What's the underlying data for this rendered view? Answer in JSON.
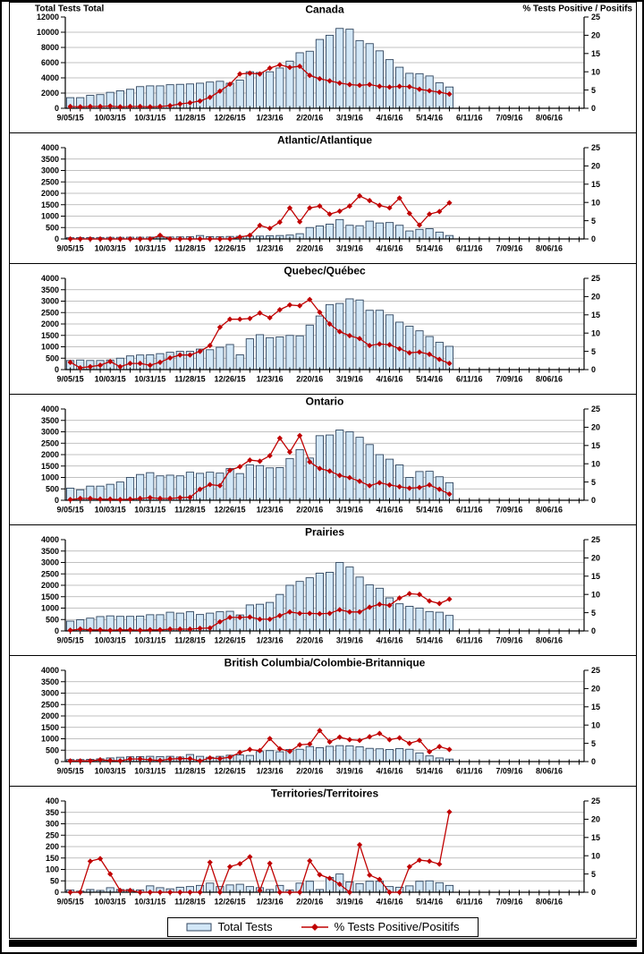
{
  "axis_titles": {
    "left": "Total Tests Total",
    "right": "% Tests Positive / Positifs"
  },
  "legend": {
    "bar_label": "Total Tests",
    "line_label": "% Tests Positive/Positifs"
  },
  "colors": {
    "bar_fill": "#D2E7F7",
    "bar_stroke": "#31465F",
    "line": "#C00000",
    "grid": "#ACACAC",
    "axis": "#000000",
    "text": "#000000"
  },
  "x_axis": {
    "tick_labels": [
      "9/05/15",
      "10/03/15",
      "10/31/15",
      "11/28/15",
      "12/26/15",
      "1/23/16",
      "2/20/16",
      "3/19/16",
      "4/16/16",
      "5/14/16",
      "6/11/16",
      "7/09/16",
      "8/06/16"
    ],
    "weeks_total": 52,
    "label_interval": 4,
    "data_weeks": 39
  },
  "right_axis": {
    "ylim": [
      0,
      25
    ],
    "ticks": [
      0,
      5,
      10,
      15,
      20,
      25
    ]
  },
  "chart_data": [
    {
      "type": "bar+line",
      "title": "Canada",
      "slug": "canada",
      "ylim": [
        0,
        12000
      ],
      "yticks": [
        0,
        2000,
        4000,
        6000,
        8000,
        10000,
        12000
      ],
      "bars": [
        1400,
        1400,
        1700,
        1800,
        2100,
        2300,
        2500,
        2850,
        2950,
        2950,
        3100,
        3150,
        3200,
        3300,
        3450,
        3550,
        3300,
        3700,
        4800,
        4700,
        4800,
        5300,
        6200,
        7300,
        7500,
        9050,
        9600,
        10500,
        10400,
        8900,
        8500,
        7550,
        6400,
        5400,
        4600,
        4550,
        4250,
        3350,
        2800
      ],
      "pct_positive": [
        0.5,
        0.4,
        0.5,
        0.5,
        0.6,
        0.4,
        0.5,
        0.5,
        0.4,
        0.5,
        0.7,
        1.2,
        1.5,
        2.0,
        3.0,
        4.7,
        6.6,
        9.4,
        9.6,
        9.4,
        11.0,
        11.9,
        11.2,
        11.5,
        9.0,
        8.1,
        7.5,
        6.9,
        6.5,
        6.3,
        6.5,
        6.0,
        5.8,
        6.0,
        5.9,
        5.2,
        4.8,
        4.4,
        3.9
      ]
    },
    {
      "type": "bar+line",
      "title": "Atlantic/Atlantique",
      "slug": "atlantic",
      "ylim": [
        0,
        4000
      ],
      "yticks": [
        0,
        500,
        1000,
        1500,
        2000,
        2500,
        3000,
        3500,
        4000
      ],
      "bars": [
        55,
        60,
        60,
        65,
        70,
        70,
        75,
        75,
        80,
        80,
        85,
        90,
        95,
        150,
        100,
        95,
        110,
        115,
        120,
        125,
        135,
        150,
        170,
        230,
        500,
        570,
        650,
        850,
        600,
        580,
        780,
        700,
        720,
        600,
        350,
        420,
        450,
        300,
        150
      ],
      "pct_positive": [
        0,
        0,
        0,
        0,
        0,
        0,
        0,
        0,
        0,
        1.0,
        0,
        0,
        0,
        0,
        0,
        0,
        0,
        0.5,
        1.0,
        3.7,
        2.9,
        4.6,
        8.5,
        4.7,
        8.5,
        9.0,
        6.8,
        7.6,
        9.0,
        11.8,
        10.5,
        9.2,
        8.5,
        11.2,
        7.0,
        3.8,
        6.8,
        7.5,
        9.9
      ]
    },
    {
      "type": "bar+line",
      "title": "Quebec/Québec",
      "slug": "quebec",
      "ylim": [
        0,
        4000
      ],
      "yticks": [
        0,
        500,
        1000,
        1500,
        2000,
        2500,
        3000,
        3500,
        4000
      ],
      "bars": [
        400,
        420,
        400,
        400,
        420,
        500,
        600,
        640,
        650,
        700,
        760,
        800,
        800,
        900,
        870,
        980,
        1100,
        650,
        1350,
        1530,
        1400,
        1430,
        1500,
        1480,
        1950,
        2350,
        2850,
        2900,
        3100,
        3050,
        2600,
        2600,
        2400,
        2080,
        1900,
        1700,
        1450,
        1200,
        1020
      ],
      "pct_positive": [
        2.0,
        0.5,
        0.8,
        1.2,
        2.2,
        0.8,
        1.7,
        1.7,
        1.2,
        2.0,
        3.2,
        4.0,
        4.0,
        5.0,
        6.6,
        11.6,
        13.8,
        13.8,
        14.0,
        15.5,
        14.2,
        16.4,
        17.7,
        17.5,
        19.2,
        15.7,
        12.5,
        10.4,
        9.3,
        8.5,
        6.6,
        7.0,
        6.8,
        5.7,
        4.6,
        4.8,
        4.2,
        2.8,
        1.7
      ]
    },
    {
      "type": "bar+line",
      "title": "Ontario",
      "slug": "ontario",
      "ylim": [
        0,
        4000
      ],
      "yticks": [
        0,
        500,
        1000,
        1500,
        2000,
        2500,
        3000,
        3500,
        4000
      ],
      "bars": [
        530,
        460,
        620,
        620,
        700,
        800,
        1000,
        1130,
        1210,
        1070,
        1100,
        1070,
        1230,
        1180,
        1230,
        1190,
        1390,
        1170,
        1550,
        1520,
        1420,
        1430,
        1830,
        2220,
        1850,
        2830,
        2860,
        3080,
        3000,
        2760,
        2440,
        2000,
        1800,
        1550,
        1000,
        1260,
        1270,
        1030,
        770
      ],
      "pct_positive": [
        0.2,
        0.5,
        0.5,
        0.3,
        0.3,
        0.2,
        0.3,
        0.5,
        0.7,
        0.5,
        0.5,
        0.7,
        0.8,
        3.0,
        4.3,
        4.0,
        8.2,
        9.2,
        11.0,
        10.7,
        12.2,
        17.0,
        13.2,
        17.7,
        10.5,
        8.7,
        8.0,
        6.8,
        6.2,
        5.2,
        4.0,
        4.8,
        4.2,
        3.7,
        3.3,
        3.5,
        4.2,
        3.0,
        1.7
      ]
    },
    {
      "type": "bar+line",
      "title": "Prairies",
      "slug": "prairies",
      "ylim": [
        0,
        4000
      ],
      "yticks": [
        0,
        500,
        1000,
        1500,
        2000,
        2500,
        3000,
        3500,
        4000
      ],
      "bars": [
        430,
        490,
        560,
        630,
        660,
        640,
        640,
        650,
        710,
        710,
        820,
        780,
        840,
        720,
        780,
        840,
        860,
        700,
        1140,
        1170,
        1250,
        1600,
        2000,
        2170,
        2330,
        2530,
        2570,
        3000,
        2800,
        2360,
        2020,
        1870,
        1450,
        1190,
        1080,
        1000,
        850,
        820,
        680
      ],
      "pct_positive": [
        0.2,
        0.5,
        0.3,
        0.3,
        0.2,
        0.3,
        0.3,
        0.2,
        0.3,
        0.3,
        0.5,
        0.5,
        0.5,
        0.7,
        0.8,
        2.5,
        3.7,
        3.7,
        3.8,
        3.2,
        3.2,
        4.2,
        5.2,
        4.8,
        4.8,
        4.7,
        4.8,
        5.8,
        5.2,
        5.2,
        6.5,
        7.3,
        7.0,
        9.0,
        10.2,
        10.0,
        8.2,
        7.5,
        8.7
      ]
    },
    {
      "type": "bar+line",
      "title": "British Columbia/Colombie-Britannique",
      "slug": "british-columbia",
      "ylim": [
        0,
        4000
      ],
      "yticks": [
        0,
        500,
        1000,
        1500,
        2000,
        2500,
        3000,
        3500,
        4000
      ],
      "bars": [
        90,
        90,
        100,
        120,
        160,
        190,
        210,
        220,
        230,
        220,
        230,
        200,
        310,
        230,
        190,
        230,
        280,
        290,
        270,
        440,
        480,
        430,
        530,
        540,
        660,
        610,
        670,
        700,
        690,
        650,
        580,
        560,
        530,
        570,
        540,
        380,
        250,
        160,
        110
      ],
      "pct_positive": [
        0.2,
        0.2,
        0.2,
        0.5,
        0.3,
        0.2,
        0.7,
        0.7,
        0.5,
        0.3,
        0.7,
        0.8,
        0.8,
        0.2,
        1.0,
        0.8,
        1.2,
        2.5,
        3.3,
        3.0,
        6.3,
        3.5,
        2.8,
        4.6,
        4.8,
        8.5,
        5.4,
        6.7,
        6.0,
        5.8,
        6.8,
        7.7,
        6.0,
        6.5,
        5.0,
        5.8,
        2.7,
        4.1,
        3.3
      ]
    },
    {
      "type": "bar+line",
      "title": "Territories/Territoires",
      "slug": "territories",
      "ylim": [
        0,
        400
      ],
      "yticks": [
        0,
        50,
        100,
        150,
        200,
        250,
        300,
        350,
        400
      ],
      "bars": [
        10,
        5,
        12,
        8,
        20,
        12,
        12,
        10,
        28,
        20,
        15,
        22,
        25,
        30,
        40,
        25,
        32,
        35,
        25,
        20,
        12,
        30,
        10,
        40,
        48,
        12,
        65,
        80,
        45,
        38,
        48,
        48,
        25,
        22,
        28,
        48,
        50,
        42,
        30
      ],
      "pct_positive": [
        0,
        0,
        8.5,
        9.2,
        5.0,
        0.5,
        0.5,
        0,
        0,
        0,
        0,
        0,
        0,
        0,
        8.2,
        0,
        7.0,
        7.8,
        9.7,
        0.5,
        7.9,
        0,
        0,
        0,
        8.6,
        4.8,
        3.8,
        2.2,
        0,
        13.0,
        4.7,
        3.5,
        0,
        0,
        7.0,
        8.8,
        8.5,
        7.7,
        22.0
      ]
    }
  ]
}
